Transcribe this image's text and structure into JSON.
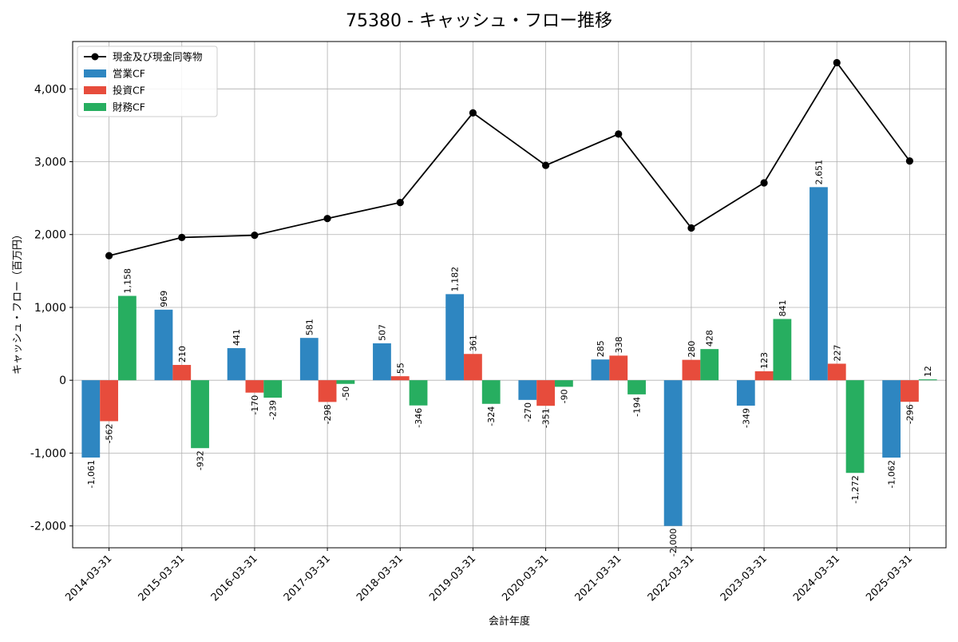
{
  "chart_data": {
    "type": "bar",
    "title": "75380 - キャッシュ・フロー推移",
    "xlabel": "会計年度",
    "ylabel": "キャッシュ・フロー（百万円）",
    "ylim": [
      -2300,
      4650
    ],
    "yticks": [
      -2000,
      -1000,
      0,
      1000,
      2000,
      3000,
      4000
    ],
    "ytick_labels": [
      "-2,000",
      "-1,000",
      "0",
      "1,000",
      "2,000",
      "3,000",
      "4,000"
    ],
    "grid": true,
    "legend_position": "top-left",
    "categories": [
      "2014-03-31",
      "2015-03-31",
      "2016-03-31",
      "2017-03-31",
      "2018-03-31",
      "2019-03-31",
      "2020-03-31",
      "2021-03-31",
      "2022-03-31",
      "2023-03-31",
      "2024-03-31",
      "2025-03-31"
    ],
    "series": [
      {
        "name": "営業CF",
        "kind": "bar",
        "color": "#2e86c1",
        "values": [
          -1061,
          969,
          441,
          581,
          507,
          1182,
          -270,
          285,
          -2000,
          -349,
          2651,
          -1062
        ],
        "labels": [
          "-1,061",
          "969",
          "441",
          "581",
          "507",
          "1,182",
          "-270",
          "285",
          "-2,000",
          "-349",
          "2,651",
          "-1,062"
        ]
      },
      {
        "name": "投資CF",
        "kind": "bar",
        "color": "#e74c3c",
        "values": [
          -562,
          210,
          -170,
          -298,
          55,
          361,
          -351,
          338,
          280,
          123,
          227,
          -296
        ],
        "labels": [
          "-562",
          "210",
          "-170",
          "-298",
          "55",
          "361",
          "-351",
          "338",
          "280",
          "123",
          "227",
          "-296"
        ]
      },
      {
        "name": "財務CF",
        "kind": "bar",
        "color": "#27ae60",
        "values": [
          1158,
          -932,
          -239,
          -50,
          -346,
          -324,
          -90,
          -194,
          428,
          841,
          -1272,
          12
        ],
        "labels": [
          "1,158",
          "-932",
          "-239",
          "-50",
          "-346",
          "-324",
          "-90",
          "-194",
          "428",
          "841",
          "-1,272",
          "12"
        ]
      },
      {
        "name": "現金及び現金同等物",
        "kind": "line",
        "color": "#000000",
        "values": [
          1710,
          1960,
          1990,
          2220,
          2440,
          3670,
          2950,
          3380,
          2090,
          2710,
          4360,
          3010
        ]
      }
    ]
  }
}
